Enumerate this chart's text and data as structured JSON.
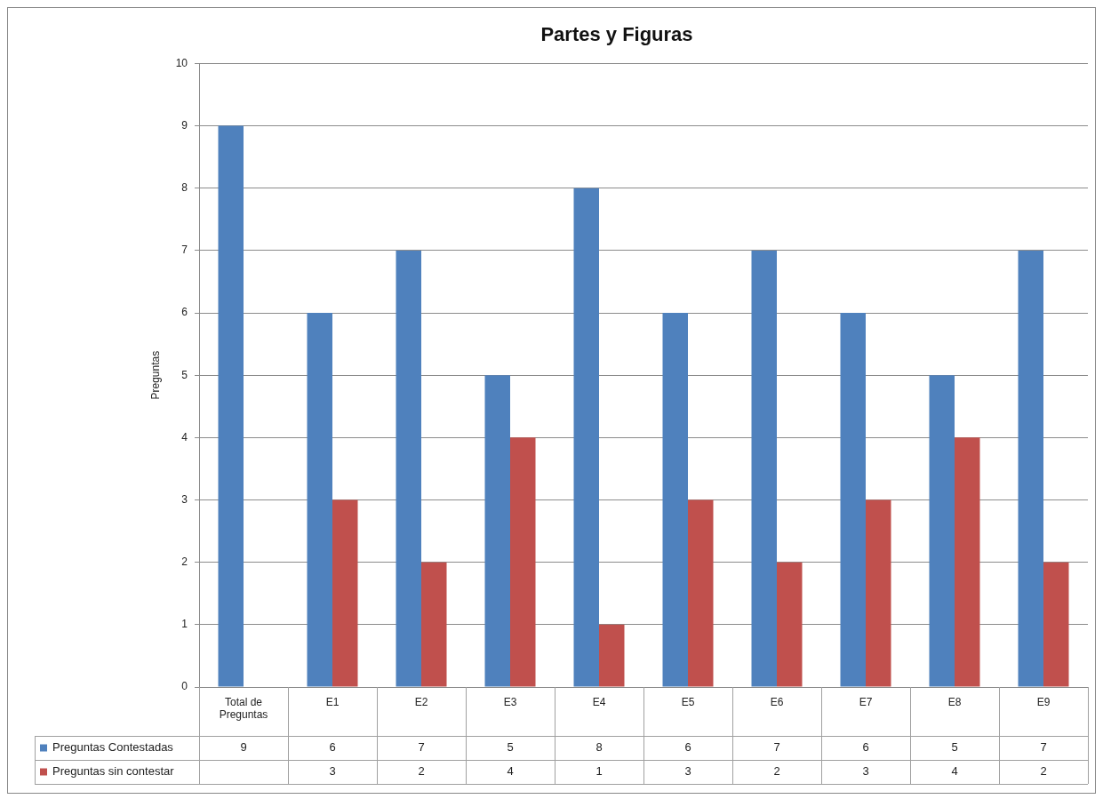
{
  "chart_data": {
    "type": "bar",
    "title": "Partes y Figuras",
    "ylabel": "Preguntas",
    "categories": [
      "Total de Preguntas",
      "E1",
      "E2",
      "E3",
      "E4",
      "E5",
      "E6",
      "E7",
      "E8",
      "E9"
    ],
    "series": [
      {
        "name": "Preguntas Contestadas",
        "color": "#4f81bd",
        "values": [
          9,
          6,
          7,
          5,
          8,
          6,
          7,
          6,
          5,
          7
        ]
      },
      {
        "name": "Preguntas sin contestar",
        "color": "#c0504d",
        "values": [
          null,
          3,
          2,
          4,
          1,
          3,
          2,
          3,
          4,
          2
        ]
      }
    ],
    "ylim": [
      0,
      10
    ],
    "yticks": [
      0,
      1,
      2,
      3,
      4,
      5,
      6,
      7,
      8,
      9,
      10
    ],
    "grid": "y",
    "legend": "bottom",
    "data_labels": true
  }
}
